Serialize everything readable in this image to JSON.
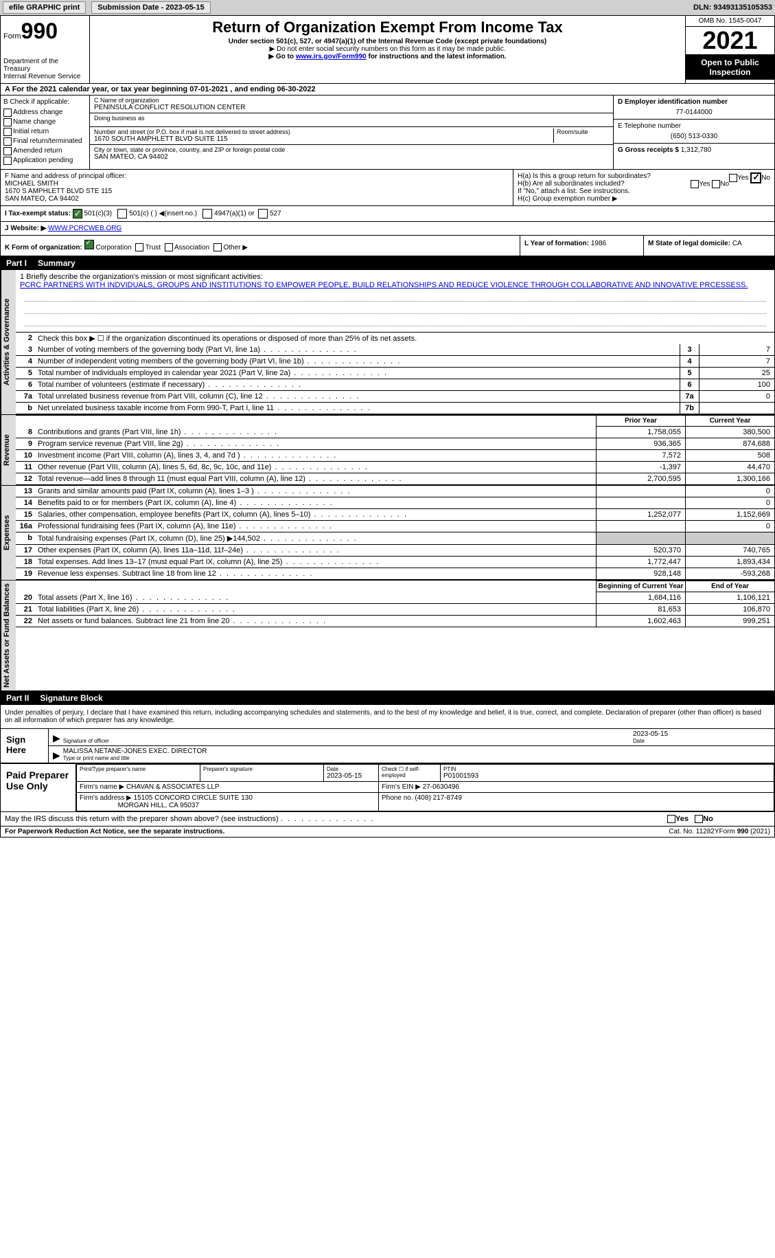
{
  "top": {
    "efile": "efile GRAPHIC print",
    "sub_label": "Submission Date - 2023-05-15",
    "dln": "DLN: 93493135105353"
  },
  "header": {
    "form": "Form",
    "form_num": "990",
    "dept": "Department of the Treasury",
    "irs": "Internal Revenue Service",
    "title": "Return of Organization Exempt From Income Tax",
    "sub1": "Under section 501(c), 527, or 4947(a)(1) of the Internal Revenue Code (except private foundations)",
    "sub2": "▶ Do not enter social security numbers on this form as it may be made public.",
    "sub3_pre": "▶ Go to ",
    "sub3_link": "www.irs.gov/Form990",
    "sub3_post": " for instructions and the latest information.",
    "omb": "OMB No. 1545-0047",
    "year": "2021",
    "open": "Open to Public Inspection"
  },
  "cal": "A For the 2021 calendar year, or tax year beginning 07-01-2021   , and ending 06-30-2022",
  "b": {
    "title": "B Check if applicable:",
    "items": [
      "Address change",
      "Name change",
      "Initial return",
      "Final return/terminated",
      "Amended return",
      "Application pending"
    ]
  },
  "c": {
    "name_lbl": "C Name of organization",
    "name": "PENINSULA CONFLICT RESOLUTION CENTER",
    "dba_lbl": "Doing business as",
    "dba": "",
    "addr_lbl": "Number and street (or P.O. box if mail is not delivered to street address)",
    "addr": "1670 SOUTH AMPHLETT BLVD SUITE 115",
    "room_lbl": "Room/suite",
    "city_lbl": "City or town, state or province, country, and ZIP or foreign postal code",
    "city": "SAN MATEO, CA  94402"
  },
  "d": {
    "lbl": "D Employer identification number",
    "val": "77-0144000"
  },
  "e": {
    "lbl": "E Telephone number",
    "val": "(650) 513-0330"
  },
  "g": {
    "lbl": "G Gross receipts $",
    "val": "1,312,780"
  },
  "f": {
    "lbl": "F Name and address of principal officer:",
    "name": "MICHAEL SMITH",
    "addr1": "1670 S AMPHLETT BLVD STE 115",
    "addr2": "SAN MATEO, CA  94402"
  },
  "h": {
    "a": "H(a)  Is this a group return for subordinates?",
    "b": "H(b)  Are all subordinates included?",
    "note": "If \"No,\" attach a list. See instructions.",
    "c": "H(c)  Group exemption number ▶"
  },
  "i": {
    "lbl": "I   Tax-exempt status:",
    "opt1": "501(c)(3)",
    "opt2": "501(c) (  ) ◀(insert no.)",
    "opt3": "4947(a)(1) or",
    "opt4": "527"
  },
  "j": {
    "lbl": "J   Website: ▶",
    "val": "WWW.PCRCWEB.ORG"
  },
  "k": {
    "lbl": "K Form of organization:",
    "corp": "Corporation",
    "trust": "Trust",
    "assoc": "Association",
    "other": "Other ▶"
  },
  "l": {
    "lbl": "L Year of formation:",
    "val": "1986"
  },
  "m": {
    "lbl": "M State of legal domicile:",
    "val": "CA"
  },
  "part1": {
    "num": "Part I",
    "title": "Summary"
  },
  "mission_lbl": "1   Briefly describe the organization's mission or most significant activities:",
  "mission": "PCRC PARTNERS WITH INDVIDUALS, GROUPS AND INSTITUTIONS TO EMPOWER PEOPLE, BUILD RELATIONSHIPS AND REDUCE VIOLENCE THROUGH COLLABORATIVE AND INNOVATIVE PRCESSESS.",
  "line2": "Check this box ▶ ☐  if the organization discontinued its operations or disposed of more than 25% of its net assets.",
  "vert": {
    "ag": "Activities & Governance",
    "rev": "Revenue",
    "exp": "Expenses",
    "na": "Net Assets or Fund Balances"
  },
  "lines_ag": [
    {
      "n": "3",
      "d": "Number of voting members of the governing body (Part VI, line 1a)",
      "bn": "3",
      "v": "7"
    },
    {
      "n": "4",
      "d": "Number of independent voting members of the governing body (Part VI, line 1b)",
      "bn": "4",
      "v": "7"
    },
    {
      "n": "5",
      "d": "Total number of individuals employed in calendar year 2021 (Part V, line 2a)",
      "bn": "5",
      "v": "25"
    },
    {
      "n": "6",
      "d": "Total number of volunteers (estimate if necessary)",
      "bn": "6",
      "v": "100"
    },
    {
      "n": "7a",
      "d": "Total unrelated business revenue from Part VIII, column (C), line 12",
      "bn": "7a",
      "v": "0"
    },
    {
      "n": "b",
      "d": "Net unrelated business taxable income from Form 990-T, Part I, line 11",
      "bn": "7b",
      "v": ""
    }
  ],
  "col_py": "Prior Year",
  "col_cy": "Current Year",
  "lines_rev": [
    {
      "n": "8",
      "d": "Contributions and grants (Part VIII, line 1h)",
      "py": "1,758,055",
      "cy": "380,500"
    },
    {
      "n": "9",
      "d": "Program service revenue (Part VIII, line 2g)",
      "py": "936,365",
      "cy": "874,688"
    },
    {
      "n": "10",
      "d": "Investment income (Part VIII, column (A), lines 3, 4, and 7d )",
      "py": "7,572",
      "cy": "508"
    },
    {
      "n": "11",
      "d": "Other revenue (Part VIII, column (A), lines 5, 6d, 8c, 9c, 10c, and 11e)",
      "py": "-1,397",
      "cy": "44,470"
    },
    {
      "n": "12",
      "d": "Total revenue—add lines 8 through 11 (must equal Part VIII, column (A), line 12)",
      "py": "2,700,595",
      "cy": "1,300,166"
    }
  ],
  "lines_exp": [
    {
      "n": "13",
      "d": "Grants and similar amounts paid (Part IX, column (A), lines 1–3 )",
      "py": "",
      "cy": "0"
    },
    {
      "n": "14",
      "d": "Benefits paid to or for members (Part IX, column (A), line 4)",
      "py": "",
      "cy": "0"
    },
    {
      "n": "15",
      "d": "Salaries, other compensation, employee benefits (Part IX, column (A), lines 5–10)",
      "py": "1,252,077",
      "cy": "1,152,669"
    },
    {
      "n": "16a",
      "d": "Professional fundraising fees (Part IX, column (A), line 11e)",
      "py": "",
      "cy": "0"
    },
    {
      "n": "b",
      "d": "Total fundraising expenses (Part IX, column (D), line 25) ▶144,502",
      "py": "GRAY",
      "cy": "GRAY"
    },
    {
      "n": "17",
      "d": "Other expenses (Part IX, column (A), lines 11a–11d, 11f–24e)",
      "py": "520,370",
      "cy": "740,765"
    },
    {
      "n": "18",
      "d": "Total expenses. Add lines 13–17 (must equal Part IX, column (A), line 25)",
      "py": "1,772,447",
      "cy": "1,893,434"
    },
    {
      "n": "19",
      "d": "Revenue less expenses. Subtract line 18 from line 12",
      "py": "928,148",
      "cy": "-593,268"
    }
  ],
  "col_bcy": "Beginning of Current Year",
  "col_eoy": "End of Year",
  "lines_na": [
    {
      "n": "20",
      "d": "Total assets (Part X, line 16)",
      "py": "1,684,116",
      "cy": "1,106,121"
    },
    {
      "n": "21",
      "d": "Total liabilities (Part X, line 26)",
      "py": "81,653",
      "cy": "106,870"
    },
    {
      "n": "22",
      "d": "Net assets or fund balances. Subtract line 21 from line 20",
      "py": "1,602,463",
      "cy": "999,251"
    }
  ],
  "part2": {
    "num": "Part II",
    "title": "Signature Block"
  },
  "sig_text": "Under penalties of perjury, I declare that I have examined this return, including accompanying schedules and statements, and to the best of my knowledge and belief, it is true, correct, and complete. Declaration of preparer (other than officer) is based on all information of which preparer has any knowledge.",
  "sign_here": "Sign Here",
  "sig_officer_lbl": "Signature of officer",
  "sig_date": "2023-05-15",
  "sig_date_lbl": "Date",
  "sig_name": "MALISSA NETANE-JONES  EXEC. DIRECTOR",
  "sig_name_lbl": "Type or print name and title",
  "paid_prep": "Paid Preparer Use Only",
  "prep": {
    "h1": "Print/Type preparer's name",
    "h2": "Preparer's signature",
    "h3": "Date",
    "h3v": "2023-05-15",
    "h4": "Check ☐ if self-employed",
    "h5": "PTIN",
    "h5v": "P01001593",
    "firm_lbl": "Firm's name    ▶",
    "firm": "CHAVAN & ASSOCIATES LLP",
    "ein_lbl": "Firm's EIN ▶",
    "ein": "27-0630496",
    "addr_lbl": "Firm's address ▶",
    "addr1": "15105 CONCORD CIRCLE SUITE 130",
    "addr2": "MORGAN HILL, CA  95037",
    "phone_lbl": "Phone no.",
    "phone": "(408) 217-8749"
  },
  "discuss": "May the IRS discuss this return with the preparer shown above? (see instructions)",
  "footer": {
    "l": "For Paperwork Reduction Act Notice, see the separate instructions.",
    "m": "Cat. No. 11282Y",
    "r": "Form 990 (2021)"
  }
}
